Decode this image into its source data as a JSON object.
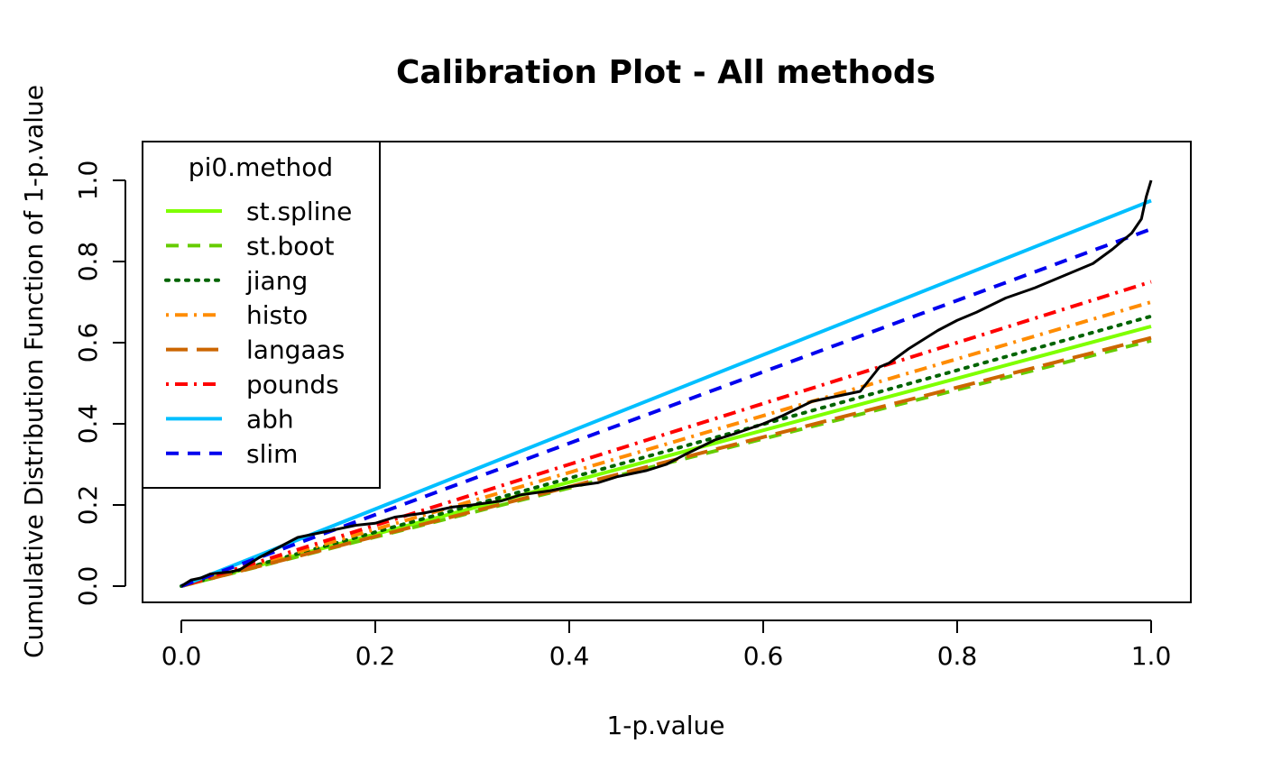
{
  "chart_data": {
    "type": "line",
    "title": "Calibration Plot - All methods",
    "xlabel": "1-p.value",
    "ylabel": "Cumulative Distribution Function of 1-p.value",
    "xlim": [
      0.0,
      1.0
    ],
    "ylim": [
      0.0,
      1.0
    ],
    "x_ticks": [
      "0.0",
      "0.2",
      "0.4",
      "0.6",
      "0.8",
      "1.0"
    ],
    "y_ticks": [
      "0.0",
      "0.2",
      "0.4",
      "0.6",
      "0.8",
      "1.0"
    ],
    "grid": false,
    "legend": {
      "title": "pi0.method",
      "position": "top-left",
      "entries": [
        "st.spline",
        "st.boot",
        "jiang",
        "histo",
        "langaas",
        "pounds",
        "abh",
        "slim"
      ]
    },
    "series": [
      {
        "name": "st.spline",
        "color": "#7FFF00",
        "line_style": "solid",
        "x": [
          0.0,
          1.0
        ],
        "y": [
          0.0,
          0.64
        ]
      },
      {
        "name": "st.boot",
        "color": "#66CC00",
        "line_style": "dashed",
        "x": [
          0.0,
          1.0
        ],
        "y": [
          0.0,
          0.605
        ]
      },
      {
        "name": "jiang",
        "color": "#006400",
        "line_style": "dotted",
        "x": [
          0.0,
          1.0
        ],
        "y": [
          0.0,
          0.665
        ]
      },
      {
        "name": "histo",
        "color": "#FF8C00",
        "line_style": "dotdash",
        "x": [
          0.0,
          1.0
        ],
        "y": [
          0.0,
          0.7
        ]
      },
      {
        "name": "langaas",
        "color": "#CC6600",
        "line_style": "longdash",
        "x": [
          0.0,
          1.0
        ],
        "y": [
          0.0,
          0.612
        ]
      },
      {
        "name": "pounds",
        "color": "#FF0000",
        "line_style": "dotdash",
        "x": [
          0.0,
          1.0
        ],
        "y": [
          0.0,
          0.75
        ]
      },
      {
        "name": "abh",
        "color": "#00BFFF",
        "line_style": "solid",
        "x": [
          0.0,
          1.0
        ],
        "y": [
          0.0,
          0.95
        ]
      },
      {
        "name": "slim",
        "color": "#0000EE",
        "line_style": "dashed",
        "x": [
          0.0,
          1.0
        ],
        "y": [
          0.0,
          0.88
        ]
      }
    ],
    "empirical_cdf": {
      "color": "#000000",
      "x": [
        0.0,
        0.01,
        0.02,
        0.03,
        0.05,
        0.06,
        0.07,
        0.08,
        0.1,
        0.12,
        0.15,
        0.18,
        0.2,
        0.22,
        0.25,
        0.28,
        0.3,
        0.33,
        0.35,
        0.38,
        0.4,
        0.43,
        0.45,
        0.48,
        0.5,
        0.52,
        0.55,
        0.57,
        0.6,
        0.62,
        0.65,
        0.67,
        0.7,
        0.72,
        0.73,
        0.75,
        0.78,
        0.8,
        0.82,
        0.85,
        0.88,
        0.9,
        0.92,
        0.94,
        0.96,
        0.98,
        0.99,
        0.995,
        1.0
      ],
      "y": [
        0.0,
        0.015,
        0.02,
        0.03,
        0.035,
        0.04,
        0.055,
        0.07,
        0.095,
        0.12,
        0.135,
        0.15,
        0.155,
        0.17,
        0.18,
        0.195,
        0.2,
        0.21,
        0.225,
        0.235,
        0.245,
        0.255,
        0.27,
        0.285,
        0.3,
        0.325,
        0.36,
        0.375,
        0.4,
        0.42,
        0.455,
        0.465,
        0.48,
        0.54,
        0.55,
        0.585,
        0.63,
        0.655,
        0.675,
        0.71,
        0.735,
        0.755,
        0.775,
        0.795,
        0.83,
        0.87,
        0.905,
        0.96,
        1.0
      ]
    }
  }
}
